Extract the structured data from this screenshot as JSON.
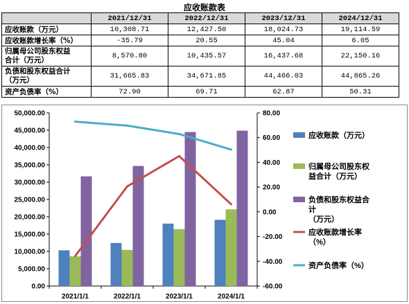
{
  "table": {
    "title": "应收账款表",
    "columns": [
      "2021/12/31",
      "2022/12/31",
      "2023/12/31",
      "2024/12/31"
    ],
    "rows": [
      {
        "label": "应收账款（万元）",
        "values": [
          "10,308.71",
          "12,427.50",
          "18,024.73",
          "19,114.59"
        ]
      },
      {
        "label": "应收账款增长率（%）",
        "values": [
          "-35.79",
          "20.55",
          "45.04",
          "6.05"
        ]
      },
      {
        "label": "归属母公司股东权益合计（万元）",
        "label_lines": [
          "归属母公司股东权益",
          "合计（万元）"
        ],
        "values": [
          "8,570.80",
          "10,435.57",
          "16,437.68",
          "22,150.16"
        ]
      },
      {
        "label": "负债和股东权益合计（万元）",
        "label_lines": [
          "负债和股东权益合计",
          "（万元）"
        ],
        "values": [
          "31,665.83",
          "34,671.85",
          "44,466.03",
          "44,865.26"
        ]
      },
      {
        "label": "资产负债率（%）",
        "values": [
          "72.90",
          "69.71",
          "62.87",
          "50.31"
        ]
      }
    ]
  },
  "chart_data": {
    "type": "bar",
    "categories": [
      "2021/1/1",
      "2022/1/1",
      "2023/1/1",
      "2024/1/1"
    ],
    "series": [
      {
        "name": "应收账款（万元）",
        "type": "bar",
        "axis": "left",
        "color": "#4f81bd",
        "values": [
          10308.71,
          12427.5,
          18024.73,
          19114.59
        ]
      },
      {
        "name": "归属母公司股东权益合计（万元）",
        "legend_lines": [
          "归属母公司股东权",
          "益合计（万元）"
        ],
        "type": "bar",
        "axis": "left",
        "color": "#9bbb59",
        "values": [
          8570.8,
          10435.57,
          16437.68,
          22150.16
        ]
      },
      {
        "name": "负债和股东权益合计（万元）",
        "legend_lines": [
          "负债和股东权益合",
          "计",
          "（万元）"
        ],
        "type": "bar",
        "axis": "left",
        "color": "#8064a2",
        "values": [
          31665.83,
          34671.85,
          44466.03,
          44865.26
        ]
      },
      {
        "name": "应收账款增长率（%）",
        "legend_lines": [
          "应收账款增长率",
          "（%）"
        ],
        "type": "line",
        "axis": "right",
        "color": "#c0504d",
        "values": [
          -35.79,
          20.55,
          45.04,
          6.05
        ]
      },
      {
        "name": "资产负债率（%）",
        "type": "line",
        "axis": "right",
        "color": "#4bacc6",
        "values": [
          72.9,
          69.71,
          62.87,
          50.31
        ]
      }
    ],
    "y_left": {
      "min": 0,
      "max": 50000,
      "step": 5000,
      "tick_labels": [
        "0.00",
        "5,000.00",
        "10,000.00",
        "15,000.00",
        "20,000.00",
        "25,000.00",
        "30,000.00",
        "35,000.00",
        "40,000.00",
        "45,000.00",
        "50,000.00"
      ]
    },
    "y_right": {
      "min": -60,
      "max": 80,
      "step": 20,
      "tick_labels": [
        "-60.00",
        "-40.00",
        "-20.00",
        "0.00",
        "20.00",
        "40.00",
        "60.00",
        "80.00"
      ]
    },
    "grid": false,
    "legend_position": "right"
  }
}
